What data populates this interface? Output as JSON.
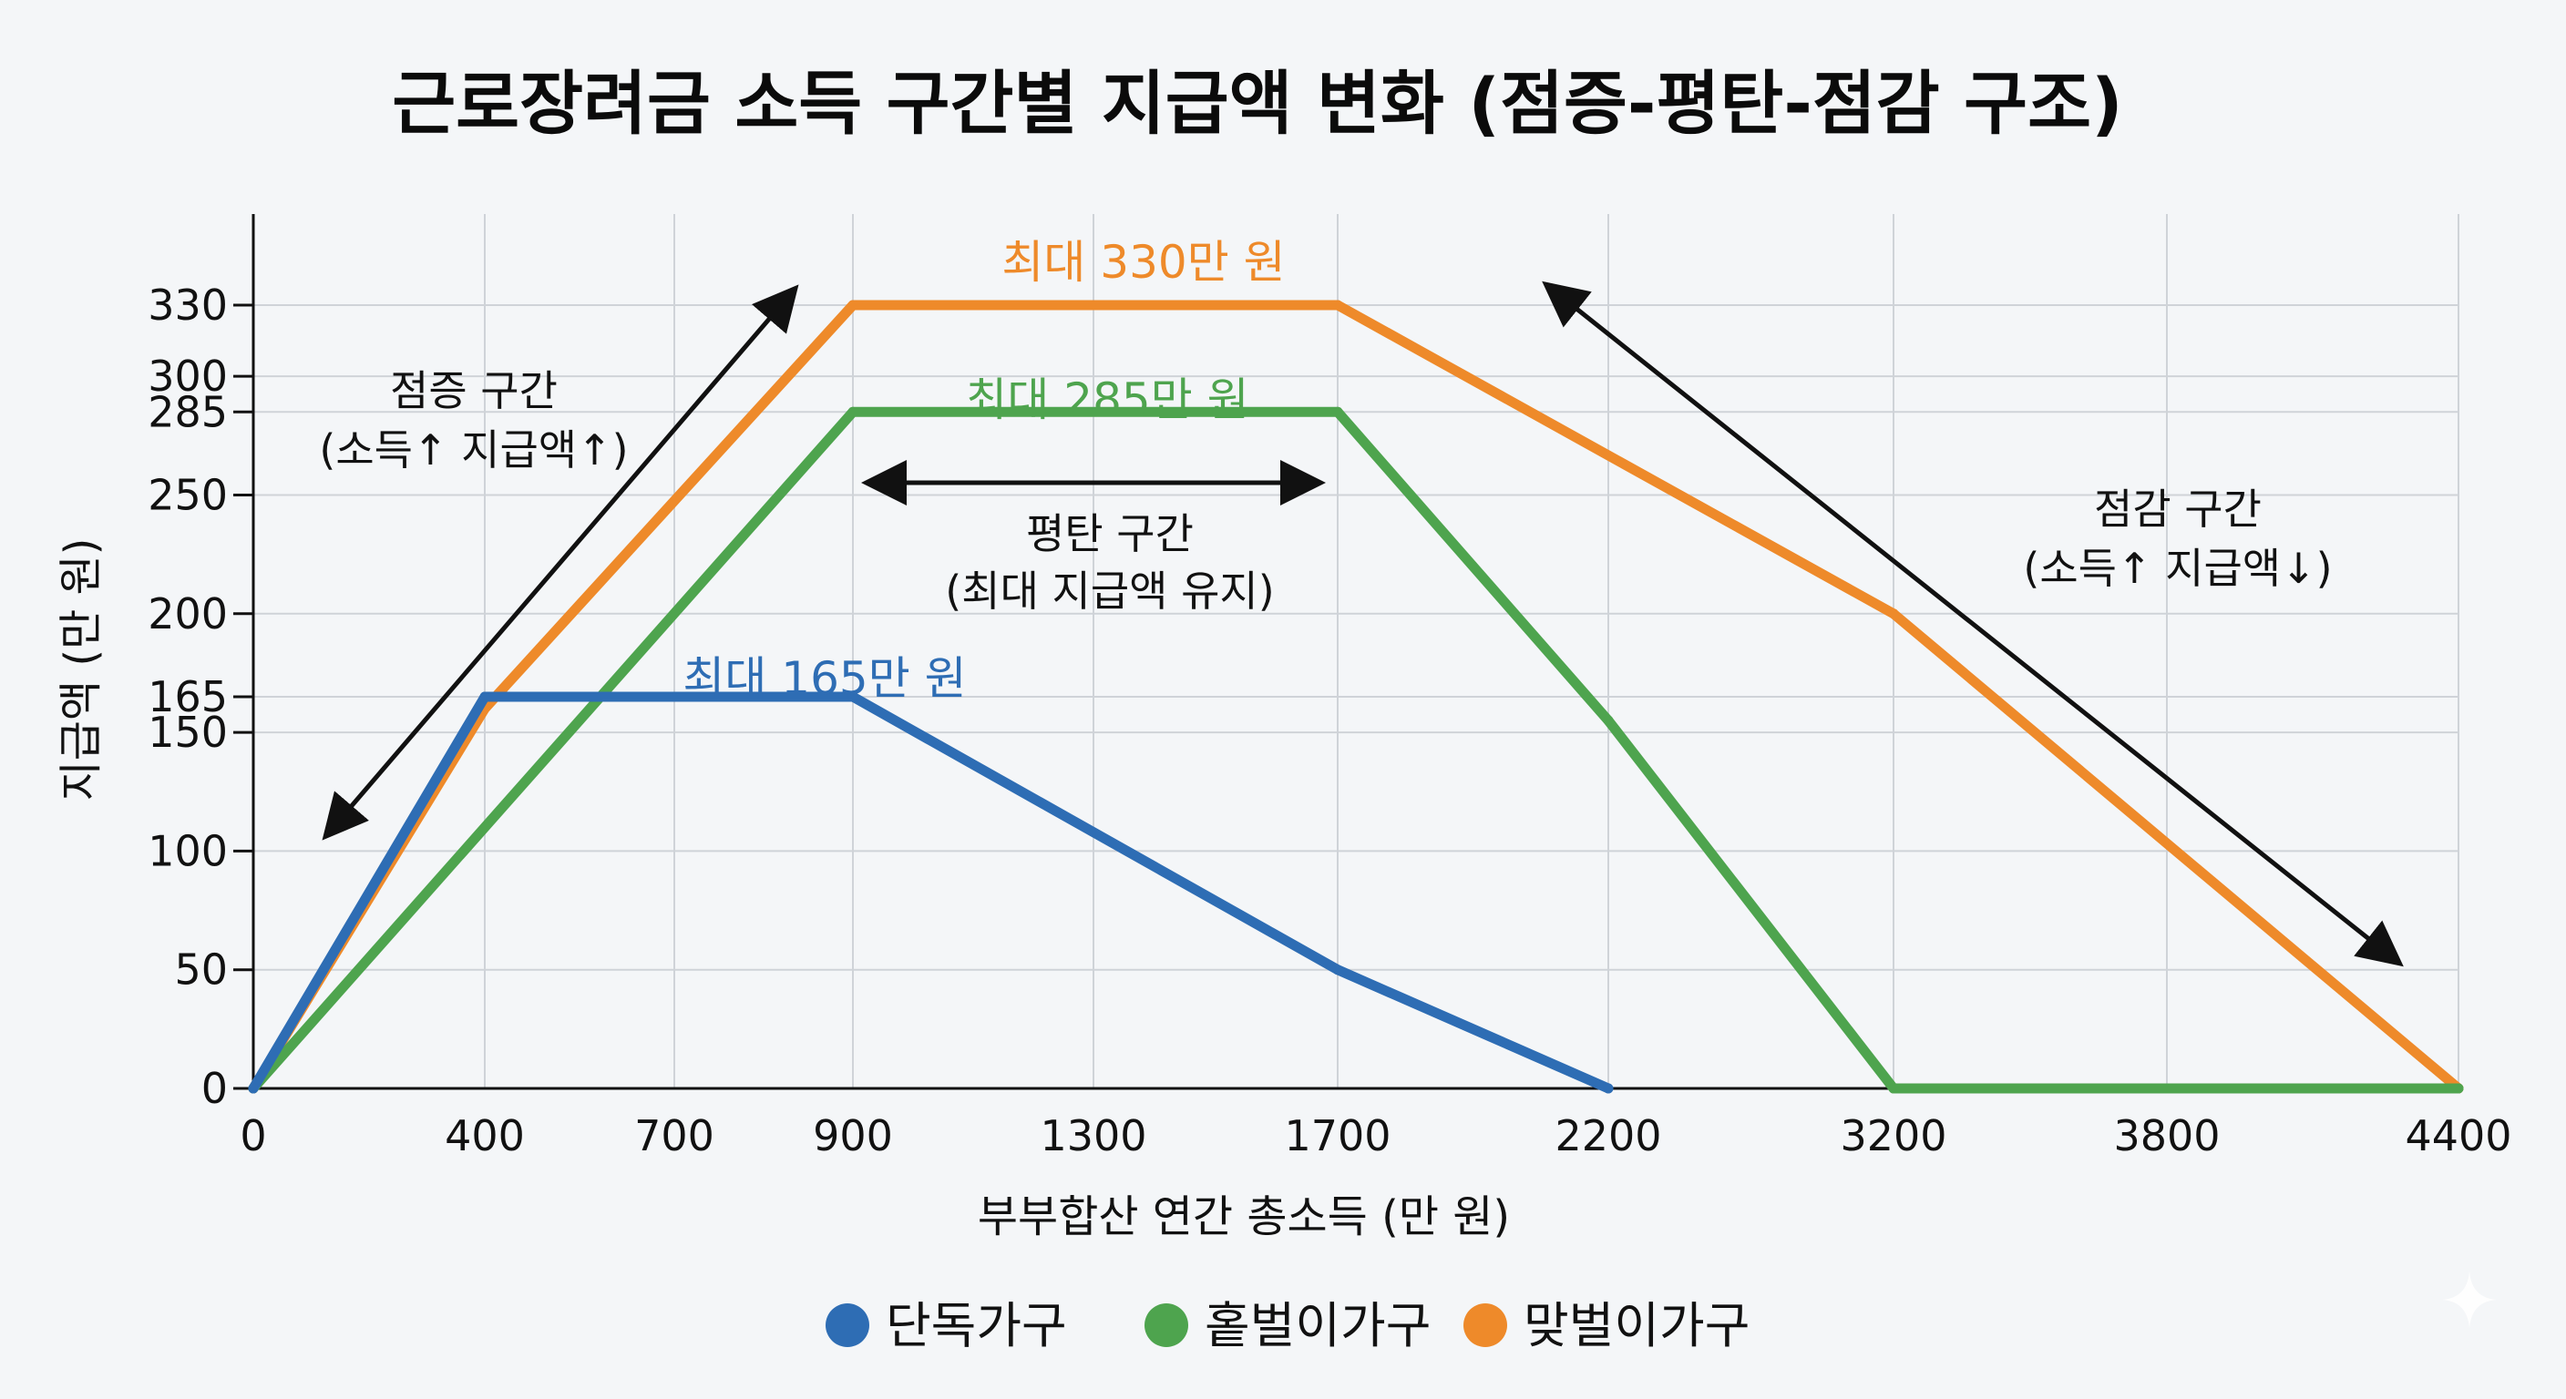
{
  "chart_data": {
    "type": "line",
    "title": "근로장려금 소득 구간별 지급액 변화 (점증-평탄-점감 구조)",
    "xlabel": "부부합산 연간 총소득 (만 원)",
    "ylabel": "지급액 (만 원)",
    "x_ticks": [
      "0",
      "400",
      "700",
      "900",
      "1300",
      "1700",
      "2200",
      "3200",
      "3800",
      "4400"
    ],
    "y_ticks": [
      "0",
      "50",
      "100",
      "150",
      "165",
      "200",
      "250",
      "285",
      "300",
      "330"
    ],
    "ylim": [
      0,
      370
    ],
    "grid": true,
    "legend_position": "bottom",
    "series": [
      {
        "name": "단독가구",
        "color": "#2e6db4",
        "points": [
          [
            0,
            0
          ],
          [
            400,
            165
          ],
          [
            900,
            165
          ],
          [
            1700,
            50
          ],
          [
            2200,
            0
          ]
        ]
      },
      {
        "name": "홑벌이가구",
        "color": "#4ea44e",
        "points": [
          [
            0,
            0
          ],
          [
            900,
            285
          ],
          [
            1700,
            285
          ],
          [
            2200,
            155
          ],
          [
            3200,
            0
          ],
          [
            4400,
            0
          ]
        ]
      },
      {
        "name": "맞벌이가구",
        "color": "#ee8a2a",
        "points": [
          [
            0,
            0
          ],
          [
            400,
            160
          ],
          [
            900,
            330
          ],
          [
            1700,
            330
          ],
          [
            3200,
            200
          ],
          [
            4400,
            0
          ]
        ]
      }
    ],
    "annotations": {
      "max_single": "최대 165만 원",
      "max_one_earner": "최대 285만 원",
      "max_dual": "최대 330만 원",
      "phase_in_title": "점증 구간",
      "phase_in_sub": "(소득↑ 지급액↑)",
      "plateau_title": "평탄 구간",
      "plateau_sub": "(최대 지급액 유지)",
      "phase_out_title": "점감 구간",
      "phase_out_sub": "(소득↑ 지급액↓)"
    }
  }
}
